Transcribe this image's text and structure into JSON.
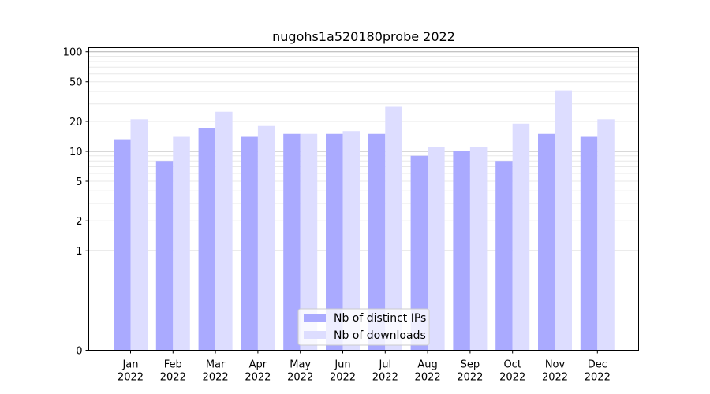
{
  "chart_data": {
    "type": "bar",
    "title": "nugohs1a520180probe 2022",
    "xlabel": "",
    "ylabel": "",
    "yscale": "symlog",
    "ylim": [
      0,
      110
    ],
    "yticks": [
      0,
      1,
      2,
      5,
      10,
      20,
      50,
      100
    ],
    "categories": [
      "Jan\n2022",
      "Feb\n2022",
      "Mar\n2022",
      "Apr\n2022",
      "May\n2022",
      "Jun\n2022",
      "Jul\n2022",
      "Aug\n2022",
      "Sep\n2022",
      "Oct\n2022",
      "Nov\n2022",
      "Dec\n2022"
    ],
    "series": [
      {
        "name": "Nb of distinct IPs",
        "color": "#aaaaff",
        "values": [
          13,
          8,
          17,
          14,
          15,
          15,
          15,
          9,
          10,
          8,
          15,
          14
        ]
      },
      {
        "name": "Nb of downloads",
        "color": "#ddddff",
        "values": [
          21,
          14,
          25,
          18,
          15,
          16,
          28,
          11,
          11,
          19,
          41,
          21
        ]
      }
    ],
    "grid": true,
    "legend_position": "lower-center"
  }
}
